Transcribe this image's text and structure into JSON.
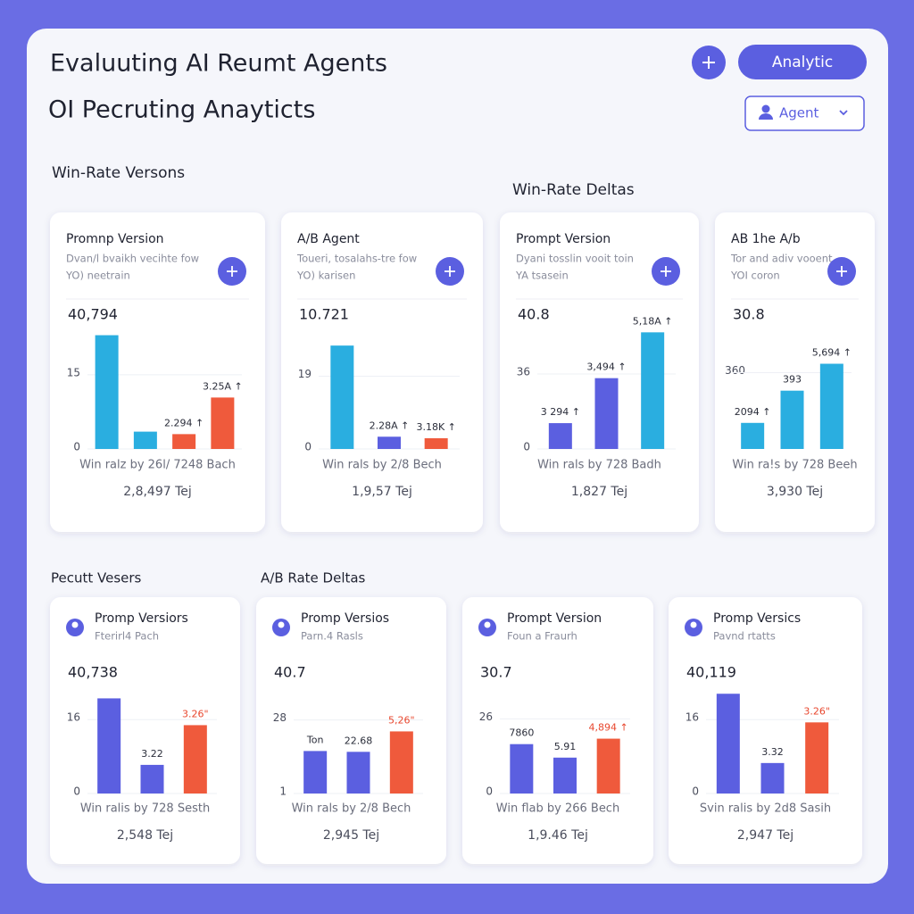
{
  "header": {
    "title": "Evaluuting AI Reumt Agents",
    "subtitle": "OI Pecruting Anayticts",
    "button": "Analytic",
    "dropdown": "Agent"
  },
  "sections": [
    "Win-Rate Versons",
    "Win-Rate Deltas",
    "Pecutt Vesers",
    "A/B Rate Deltas"
  ],
  "top_cards": [
    {
      "title": "Promnp Version",
      "subtitle": [
        "Dvan/l bvaikh vecihte fow",
        "YO) neetrain"
      ],
      "headline": "40,794",
      "chart": {
        "type": "bar",
        "ylim": [
          0,
          24
        ],
        "yticks": [
          0,
          15
        ],
        "values": [
          23,
          3.5,
          3,
          10.4
        ],
        "colors": [
          "#2aaee0",
          "#2aaee0",
          "#ef5a3c",
          "#ef5a3c"
        ],
        "notes": [
          null,
          null,
          "2.294 ↑",
          "3.25A ↑"
        ]
      },
      "caption": "Win ralz by 26l/ 7248 Bach",
      "footer": "2,8,497 Tej"
    },
    {
      "title": "A/B Agent",
      "subtitle": [
        "Toueri, tosalahs-tre fow",
        "YO) karisen"
      ],
      "headline": "10.721",
      "chart": {
        "type": "bar",
        "ylim": [
          0,
          31
        ],
        "yticks": [
          0,
          19
        ],
        "values": [
          27,
          3.2,
          2.8
        ],
        "colors": [
          "#2aaee0",
          "#5b5fe0",
          "#ef5a3c"
        ],
        "notes": [
          null,
          "2.28A ↑",
          "3.18K ↑"
        ]
      },
      "caption": "Win rals by 2/8 Bech",
      "footer": "1,9,57 Tej"
    },
    {
      "title": "Prompt Version",
      "subtitle": [
        "Dyani tosslin vooit toin",
        "YA tsasein"
      ],
      "headline": "40.8",
      "chart": {
        "type": "bar",
        "ylim": [
          0,
          57
        ],
        "yticks": [
          0,
          36
        ],
        "values": [
          12.4,
          34,
          56
        ],
        "colors": [
          "#5b5fe0",
          "#5b5fe0",
          "#2aaee0"
        ],
        "notes": [
          "3 294 ↑",
          "3,494 ↑",
          "5,18A ↑"
        ]
      },
      "caption": "Win rals by 728 Badh",
      "footer": "1,827 Tej"
    },
    {
      "title": "AB 1he A/b",
      "subtitle": [
        "Tor and adiv vooent",
        "YOI coron"
      ],
      "headline": "30.8",
      "chart": {
        "type": "bar",
        "ylim": [
          0,
          560
        ],
        "yticks": [
          360
        ],
        "values": [
          123,
          275,
          402
        ],
        "colors": [
          "#2aaee0",
          "#2aaee0",
          "#2aaee0"
        ],
        "notes": [
          "2094 ↑",
          "393",
          "5,694 ↑"
        ]
      },
      "caption": "Win ra!s by 728 Beeh",
      "footer": "3,930 Tej"
    }
  ],
  "bottom_cards": [
    {
      "title": "Promp Versiors",
      "subtitle": [
        "Fterirl4 Pach"
      ],
      "headline": "40,738",
      "chart": {
        "type": "bar",
        "ylim": [
          0,
          23
        ],
        "yticks": [
          0,
          16
        ],
        "values": [
          20.6,
          6.2,
          14.8
        ],
        "colors": [
          "#5b5fe0",
          "#5b5fe0",
          "#ef5a3c"
        ],
        "notes": [
          null,
          "3.22",
          "3.26\""
        ]
      },
      "caption": "Win ralis by 728 Sesth",
      "footer": "2,548 Tej"
    },
    {
      "title": "Promp Versios",
      "subtitle": [
        "Parn.4 Rasls"
      ],
      "headline": "40.7",
      "chart": {
        "type": "bar",
        "ylim": [
          1,
          40
        ],
        "yticks": [
          1,
          28
        ],
        "values": [
          16.6,
          16.3,
          23.8
        ],
        "colors": [
          "#5b5fe0",
          "#5b5fe0",
          "#ef5a3c"
        ],
        "notes": [
          "Ton",
          "22.68",
          "5,26\""
        ]
      },
      "caption": "Win rals by 2/8 Bech",
      "footer": "2,945 Tej"
    },
    {
      "title": "Prompt Version",
      "subtitle": [
        "Foun a Fraurh"
      ],
      "headline": "30.7",
      "chart": {
        "type": "bar",
        "ylim": [
          0,
          37
        ],
        "yticks": [
          0,
          26
        ],
        "values": [
          17.2,
          12.5,
          19.1
        ],
        "colors": [
          "#5b5fe0",
          "#5b5fe0",
          "#ef5a3c"
        ],
        "notes": [
          "7860",
          "5.91",
          "4,894 ↑"
        ]
      },
      "caption": "Win flab by 266 Bech",
      "footer": "1,9.46 Tej"
    },
    {
      "title": "Promp Versics",
      "subtitle": [
        "Pavnd rtatts"
      ],
      "headline": "40,119",
      "chart": {
        "type": "bar",
        "ylim": [
          0,
          23
        ],
        "yticks": [
          0,
          16
        ],
        "values": [
          21.6,
          6.6,
          15.4
        ],
        "colors": [
          "#5b5fe0",
          "#5b5fe0",
          "#ef5a3c"
        ],
        "notes": [
          null,
          "3.32",
          "3.26\""
        ]
      },
      "caption": "Svin ralis by 2d8 Sasih",
      "footer": "2,947 Tej"
    }
  ]
}
